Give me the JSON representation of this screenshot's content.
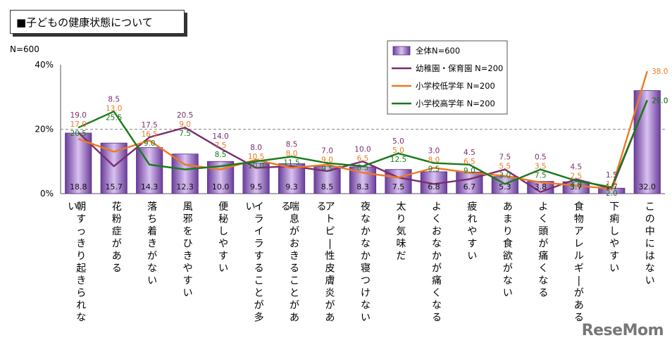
{
  "chart_data": {
    "type": "bar",
    "title": "■子どもの健康状態について",
    "n_label": "N=600",
    "yticks": [
      "0%",
      "20%",
      "40%"
    ],
    "ylim": [
      0,
      40
    ],
    "categories": [
      "朝すっきり起きられない",
      "花粉症がある",
      "落ち着きがない",
      "風邪をひきやすい",
      "便秘しやすい",
      "イライラすることが多い",
      "喘息がおきることがある",
      "アトピー性皮膚炎がある",
      "夜なかなか寝つけない",
      "太り気味だ",
      "よくおなかが痛くなる",
      "疲れやすい",
      "あまり食欲がない",
      "よく頭が痛くなる",
      "食物アレルギーがある",
      "下痢しやすい",
      "この中にはない"
    ],
    "series": [
      {
        "name": "全体N=600",
        "type": "bar",
        "color": "#9966cc",
        "values": [
          18.8,
          15.7,
          14.3,
          12.3,
          10.0,
          9.5,
          9.3,
          8.5,
          8.3,
          7.5,
          6.8,
          6.7,
          5.3,
          3.8,
          3.7,
          1.7,
          32.0
        ]
      },
      {
        "name": "幼稚園・保育園 N=200",
        "type": "line",
        "color": "#7a2e6e",
        "values": [
          19.0,
          8.5,
          17.5,
          20.5,
          14.0,
          8.0,
          8.5,
          7.0,
          10.0,
          5.0,
          3.0,
          4.5,
          7.5,
          0.5,
          4.5,
          1.5,
          29.0
        ]
      },
      {
        "name": "小学校低学年 N=200",
        "type": "line",
        "color": "#f07820",
        "values": [
          17.0,
          13.0,
          16.5,
          9.0,
          7.5,
          10.5,
          8.0,
          9.0,
          6.5,
          5.0,
          8.0,
          6.5,
          5.5,
          3.5,
          2.5,
          1.5,
          38.0
        ]
      },
      {
        "name": "小学校高学年 N=200",
        "type": "line",
        "color": "#1a7a1a",
        "values": [
          20.5,
          25.5,
          9.0,
          7.5,
          8.5,
          10.0,
          11.5,
          9.5,
          8.5,
          12.5,
          9.5,
          9.0,
          3.0,
          7.5,
          4.0,
          2.0,
          29.0
        ]
      }
    ],
    "grid": "dashed line at 20%",
    "legend_placement": "top-right"
  },
  "watermark": "ReseMom"
}
